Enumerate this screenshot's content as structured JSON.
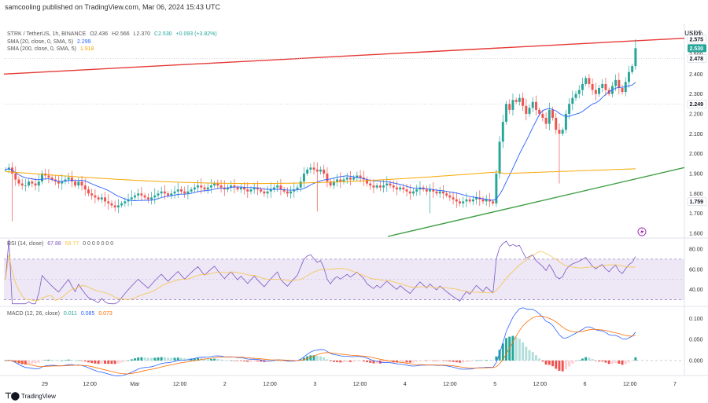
{
  "header": {
    "text": "samcooling published on TradingView.com, Mar 06, 2024 15:43 UTC"
  },
  "currency": "USDT",
  "footer": {
    "brand": "TradingView"
  },
  "legends": {
    "main": {
      "label": "STRK / TetherUS, 1h, BINANCE",
      "o": "O2.436",
      "h": "H2.566",
      "l": "L2.370",
      "c": "C2.530",
      "chg": "+0.093 (+3.82%)"
    },
    "sma20": {
      "label": "SMA (20, close, 0, SMA, 5)",
      "value": "2.299"
    },
    "sma200": {
      "label": "SMA (200, close, 0, SMA, 5)",
      "value": "1.918"
    },
    "rsi": {
      "label": "RSI (14, close)",
      "v1": "67.88",
      "v2": "58.77",
      "rest": "0 0 0 0 0 0 0"
    },
    "macd": {
      "label": "MACD (12, 26, close)",
      "v1": "0.011",
      "v2": "0.085",
      "v3": "0.073"
    }
  },
  "price_tags": [
    {
      "text": "2.575",
      "value": 2.575,
      "bg": "#ffffff",
      "fg": "#131722"
    },
    {
      "text": "2.530",
      "value": 2.53,
      "bg": "#26a69a",
      "fg": "#ffffff"
    },
    {
      "text": "2.478",
      "value": 2.478,
      "bg": "#ffffff",
      "fg": "#131722"
    },
    {
      "text": "2.249",
      "value": 2.249,
      "bg": "#ffffff",
      "fg": "#131722"
    },
    {
      "text": "1.759",
      "value": 1.759,
      "bg": "#ffffff",
      "fg": "#131722"
    }
  ],
  "chart_data": [
    {
      "type": "candlestick",
      "pane": "price",
      "ylim": [
        1.58,
        2.63
      ],
      "y_ticks": [
        "2.600",
        "2.500",
        "2.400",
        "2.300",
        "2.200",
        "2.100",
        "2.000",
        "1.900",
        "1.800",
        "1.700",
        "1.600"
      ],
      "x_ticks": [
        "29",
        "12:00",
        "Mar",
        "12:00",
        "2",
        "12:00",
        "3",
        "12:00",
        "4",
        "12:00",
        "5",
        "12:00",
        "6",
        "12:00",
        "7"
      ],
      "close": [
        1.92,
        1.93,
        1.9,
        1.87,
        1.85,
        1.84,
        1.84,
        1.86,
        1.85,
        1.84,
        1.86,
        1.9,
        1.89,
        1.88,
        1.87,
        1.86,
        1.85,
        1.86,
        1.87,
        1.88,
        1.86,
        1.84,
        1.86,
        1.84,
        1.82,
        1.8,
        1.79,
        1.78,
        1.77,
        1.78,
        1.76,
        1.75,
        1.74,
        1.73,
        1.74,
        1.75,
        1.76,
        1.77,
        1.78,
        1.79,
        1.8,
        1.79,
        1.78,
        1.77,
        1.78,
        1.79,
        1.8,
        1.81,
        1.8,
        1.79,
        1.8,
        1.81,
        1.82,
        1.81,
        1.8,
        1.81,
        1.82,
        1.83,
        1.84,
        1.83,
        1.82,
        1.83,
        1.84,
        1.85,
        1.84,
        1.83,
        1.82,
        1.83,
        1.84,
        1.83,
        1.82,
        1.83,
        1.82,
        1.81,
        1.82,
        1.83,
        1.82,
        1.81,
        1.8,
        1.81,
        1.82,
        1.83,
        1.84,
        1.82,
        1.81,
        1.8,
        1.81,
        1.82,
        1.83,
        1.86,
        1.9,
        1.92,
        1.93,
        1.92,
        1.91,
        1.92,
        1.9,
        1.86,
        1.84,
        1.86,
        1.87,
        1.86,
        1.87,
        1.88,
        1.87,
        1.88,
        1.89,
        1.88,
        1.87,
        1.85,
        1.84,
        1.83,
        1.84,
        1.83,
        1.84,
        1.85,
        1.84,
        1.83,
        1.82,
        1.83,
        1.82,
        1.81,
        1.8,
        1.81,
        1.82,
        1.83,
        1.82,
        1.81,
        1.82,
        1.81,
        1.8,
        1.81,
        1.8,
        1.79,
        1.78,
        1.77,
        1.76,
        1.75,
        1.76,
        1.77,
        1.76,
        1.77,
        1.78,
        1.77,
        1.76,
        1.77,
        1.76,
        1.75,
        1.9,
        2.06,
        2.16,
        2.25,
        2.22,
        2.27,
        2.26,
        2.28,
        2.24,
        2.2,
        2.23,
        2.26,
        2.22,
        2.2,
        2.18,
        2.15,
        2.22,
        2.18,
        2.12,
        2.1,
        2.12,
        2.2,
        2.25,
        2.28,
        2.3,
        2.32,
        2.35,
        2.38,
        2.35,
        2.32,
        2.3,
        2.33,
        2.35,
        2.32,
        2.3,
        2.34,
        2.37,
        2.33,
        2.31,
        2.36,
        2.41,
        2.44,
        2.53
      ],
      "open_first": 1.92
    },
    {
      "type": "line",
      "pane": "price",
      "series": [
        {
          "name": "SMA (20, close, 0, SMA, 5)",
          "color": "#2962ff",
          "values": []
        },
        {
          "name": "SMA (200, close, 0, SMA, 5)",
          "color": "#f7a600",
          "values": []
        }
      ]
    },
    {
      "type": "line",
      "pane": "rsi",
      "ylim": [
        25,
        90
      ],
      "y_ticks": [
        "80.00",
        "60.00",
        "40.00"
      ],
      "series": [
        {
          "name": "RSI (14, close)",
          "color": "#7e57c2",
          "values": []
        },
        {
          "name": "RSI-based MA",
          "color": "#f7c548",
          "values": []
        }
      ]
    },
    {
      "type": "bar",
      "pane": "macd",
      "ylim": [
        -0.03,
        0.125
      ],
      "y_ticks": [
        "0.100",
        "0.050",
        "0.000"
      ],
      "series": [
        {
          "name": "MACD (12, 26, close)",
          "color": "#2962ff",
          "values": []
        },
        {
          "name": "Signal",
          "color": "#ff6d00",
          "values": []
        }
      ]
    }
  ],
  "colors": {
    "up": "#26a69a",
    "down": "#ef5350",
    "resistance": "#e53935",
    "support": "#43a047",
    "rsi_band": "#ede7f6"
  }
}
